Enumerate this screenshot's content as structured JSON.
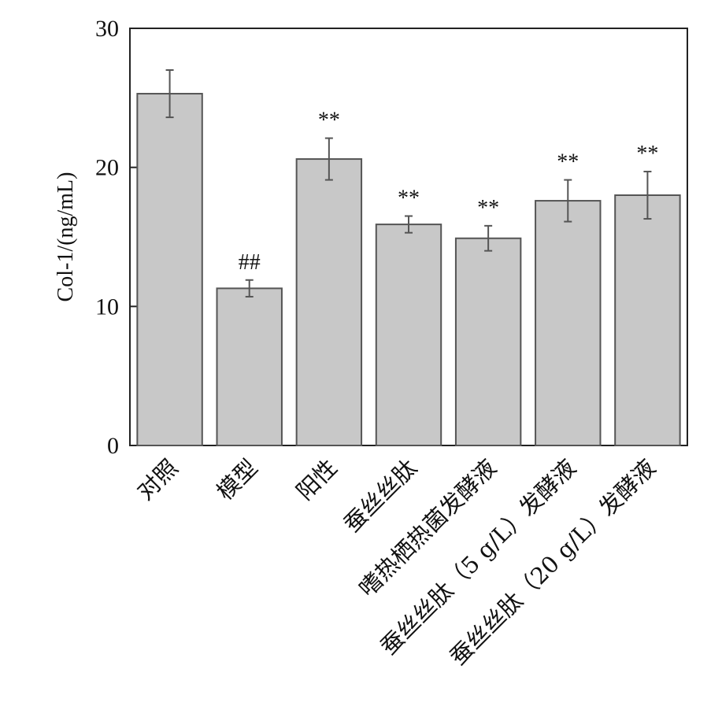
{
  "chart_data": {
    "type": "bar",
    "categories": [
      "对照",
      "模型",
      "阳性",
      "蚕丝丝肽",
      "嗜热栖热菌发酵液",
      "蚕丝丝肽（5 g/L）发酵液",
      "蚕丝丝肽（20 g/L）发酵液"
    ],
    "values": [
      25.3,
      11.3,
      20.6,
      15.9,
      14.9,
      17.6,
      18.0
    ],
    "errors": [
      1.7,
      0.6,
      1.5,
      0.6,
      0.9,
      1.5,
      1.7
    ],
    "annotations": [
      "",
      "##",
      "**",
      "**",
      "**",
      "**",
      "**"
    ],
    "title": "",
    "xlabel": "",
    "ylabel": "Col-1/(ng/mL)",
    "ylim": [
      0,
      30
    ],
    "yticks": [
      0,
      10,
      20,
      30
    ],
    "grid": false,
    "bar_color": "#c8c8c8",
    "edge_color": "#555555"
  }
}
